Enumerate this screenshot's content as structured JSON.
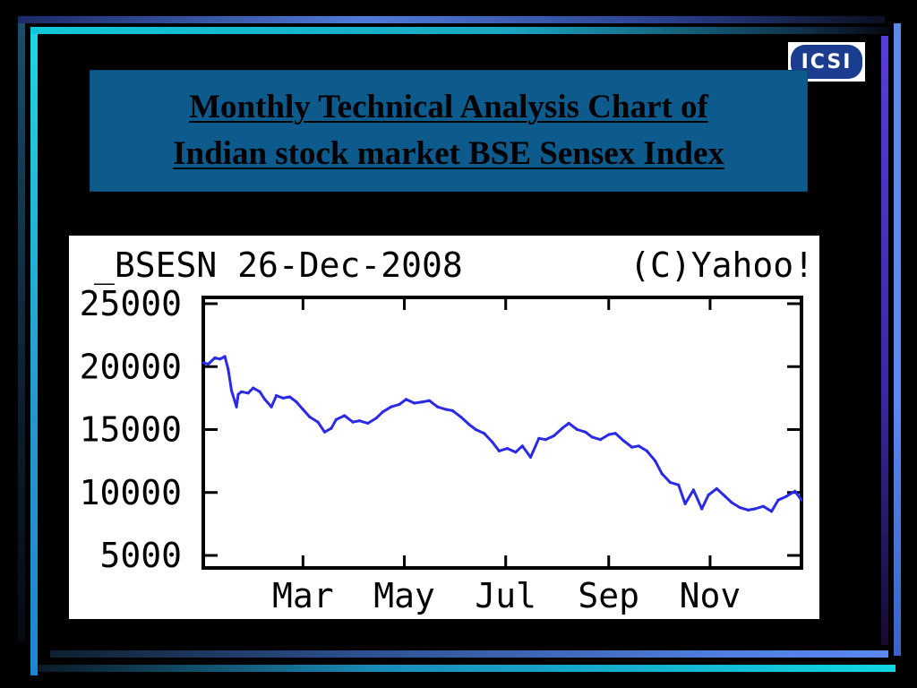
{
  "slide": {
    "title_line1": "Monthly  Technical Analysis Chart of",
    "title_line2": "Indian stock market BSE Sensex Index",
    "logo_text": "ICSI"
  },
  "colors": {
    "background": "#000000",
    "title_box": "#0d5a8c",
    "series_line": "#2a2ae6"
  },
  "chart_data": {
    "type": "line",
    "header_left": "_BSESN 26-Dec-2008",
    "header_right": "(C)Yahoo!",
    "ylim": [
      5000,
      25000
    ],
    "y_ticks": [
      5000,
      10000,
      15000,
      20000,
      25000
    ],
    "y_tick_labels": [
      "5000",
      "10000",
      "15000",
      "20000",
      "25000"
    ],
    "x_tick_labels": [
      "Mar",
      "May",
      "Jul",
      "Sep",
      "Nov"
    ],
    "x_range": [
      "2008-01-01",
      "2008-12-26"
    ],
    "x_ticks": [
      "2008-03-01",
      "2008-05-01",
      "2008-07-01",
      "2008-09-01",
      "2008-11-01"
    ],
    "grid": false,
    "series": [
      {
        "x": [
          "2008-01-01",
          "2008-01-04",
          "2008-01-08",
          "2008-01-11",
          "2008-01-14",
          "2008-01-16",
          "2008-01-18",
          "2008-01-21",
          "2008-01-22",
          "2008-01-24",
          "2008-01-28",
          "2008-01-31",
          "2008-02-04",
          "2008-02-07",
          "2008-02-11",
          "2008-02-14",
          "2008-02-18",
          "2008-02-22",
          "2008-02-26",
          "2008-03-01",
          "2008-03-05",
          "2008-03-10",
          "2008-03-14",
          "2008-03-18",
          "2008-03-21",
          "2008-03-26",
          "2008-03-31",
          "2008-04-04",
          "2008-04-09",
          "2008-04-14",
          "2008-04-18",
          "2008-04-23",
          "2008-04-28",
          "2008-05-02",
          "2008-05-07",
          "2008-05-12",
          "2008-05-16",
          "2008-05-21",
          "2008-05-26",
          "2008-05-30",
          "2008-06-04",
          "2008-06-09",
          "2008-06-13",
          "2008-06-18",
          "2008-06-23",
          "2008-06-27",
          "2008-07-02",
          "2008-07-07",
          "2008-07-11",
          "2008-07-16",
          "2008-07-21",
          "2008-07-25",
          "2008-07-30",
          "2008-08-04",
          "2008-08-08",
          "2008-08-13",
          "2008-08-18",
          "2008-08-22",
          "2008-08-27",
          "2008-09-01",
          "2008-09-05",
          "2008-09-10",
          "2008-09-15",
          "2008-09-19",
          "2008-09-24",
          "2008-09-29",
          "2008-10-03",
          "2008-10-08",
          "2008-10-13",
          "2008-10-17",
          "2008-10-22",
          "2008-10-27",
          "2008-10-31",
          "2008-11-05",
          "2008-11-10",
          "2008-11-14",
          "2008-11-19",
          "2008-11-24",
          "2008-11-28",
          "2008-12-03",
          "2008-12-08",
          "2008-12-12",
          "2008-12-17",
          "2008-12-22",
          "2008-12-26"
        ],
        "y": [
          20300,
          20200,
          20700,
          20600,
          20800,
          19800,
          18100,
          16800,
          17800,
          18000,
          17900,
          18300,
          18000,
          17400,
          16800,
          17700,
          17500,
          17600,
          17200,
          16600,
          16000,
          15600,
          14800,
          15100,
          15800,
          16100,
          15600,
          15700,
          15500,
          15900,
          16400,
          16800,
          17000,
          17400,
          17100,
          17200,
          17300,
          16800,
          16600,
          16500,
          16000,
          15400,
          15000,
          14700,
          14000,
          13300,
          13500,
          13200,
          13700,
          12800,
          14300,
          14200,
          14500,
          15100,
          15500,
          15000,
          14800,
          14400,
          14200,
          14600,
          14700,
          14100,
          13600,
          13700,
          13300,
          12500,
          11500,
          10800,
          10600,
          9100,
          10200,
          8700,
          9800,
          10300,
          9700,
          9200,
          8800,
          8600,
          8700,
          8900,
          8500,
          9400,
          9700,
          10100,
          9400
        ]
      }
    ]
  }
}
